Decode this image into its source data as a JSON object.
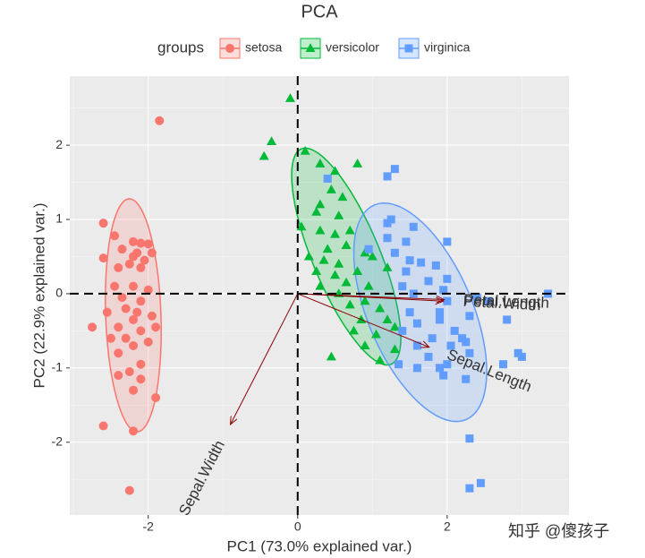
{
  "chart_data": {
    "type": "scatter",
    "title": "PCA",
    "x_label": "PC1 (73.0% explained var.)",
    "y_label": "PC2 (22.9% explained var.)",
    "legend_title": "groups",
    "grid": true,
    "xlim": [
      -3.05,
      3.63
    ],
    "ylim": [
      -2.98,
      2.93
    ],
    "xticks": [
      -2,
      0,
      2
    ],
    "yticks": [
      -2,
      -1,
      0,
      1,
      2
    ],
    "series": [
      {
        "name": "setosa",
        "color": "#F8766D",
        "shape": "circle",
        "x": [
          -1.85,
          -2.6,
          -2.45,
          -2.2,
          -2.1,
          -2.0,
          -2.35,
          -2.15,
          -1.95,
          -2.2,
          -2.05,
          -2.6,
          -2.4,
          -2.25,
          -2.1,
          -2.45,
          -2.2,
          -2.0,
          -2.35,
          -2.1,
          -2.3,
          -2.15,
          -1.95,
          -2.55,
          -2.2,
          -1.9,
          -2.75,
          -2.4,
          -2.1,
          -2.3,
          -2.0,
          -2.5,
          -2.2,
          -2.4,
          -2.1,
          -2.25,
          -2.4,
          -2.1,
          -2.2,
          -1.9,
          -2.6,
          -2.2,
          -2.25
        ],
        "y": [
          2.33,
          0.95,
          0.78,
          0.7,
          0.68,
          0.67,
          0.6,
          0.55,
          0.55,
          0.5,
          0.45,
          0.48,
          0.35,
          0.4,
          0.35,
          0.1,
          0.1,
          0.05,
          -0.05,
          -0.1,
          -0.2,
          -0.25,
          -0.3,
          -0.25,
          -0.35,
          -0.45,
          -0.45,
          -0.45,
          -0.5,
          -0.6,
          -0.65,
          -0.6,
          -0.7,
          -0.8,
          -0.95,
          -1.05,
          -1.1,
          -1.15,
          -1.3,
          -1.4,
          -1.78,
          -1.85,
          -2.65
        ],
        "ellipse": {
          "cx": -2.2,
          "cy": -0.29,
          "a": 1.57,
          "b": 0.37,
          "angle": 92
        }
      },
      {
        "name": "versicolor",
        "color": "#00BA38",
        "shape": "triangle",
        "x": [
          -0.1,
          -0.35,
          -0.45,
          0.1,
          0.3,
          0.5,
          0.45,
          0.8,
          0.6,
          0.3,
          0.25,
          0.55,
          0.05,
          0.3,
          0.5,
          0.4,
          0.7,
          0.65,
          0.9,
          1.0,
          0.15,
          0.35,
          0.55,
          0.25,
          0.5,
          0.8,
          1.2,
          0.65,
          0.95,
          0.3,
          0.55,
          0.9,
          0.7,
          1.1,
          0.85,
          1.2,
          0.75,
          1.05,
          1.3,
          0.9,
          0.45,
          1.1,
          1.3
        ],
        "y": [
          2.63,
          2.05,
          1.85,
          1.92,
          1.75,
          1.65,
          1.4,
          1.75,
          1.3,
          1.2,
          1.1,
          1.05,
          0.9,
          0.85,
          0.8,
          0.6,
          0.85,
          0.65,
          0.55,
          0.5,
          0.5,
          0.45,
          0.4,
          0.3,
          0.25,
          0.3,
          0.35,
          0.15,
          0.1,
          0.1,
          0.0,
          -0.1,
          -0.15,
          -0.2,
          -0.35,
          -0.35,
          -0.5,
          -0.55,
          -0.45,
          -0.7,
          -0.85,
          -0.9,
          -0.75
        ],
        "ellipse": {
          "cx": 0.65,
          "cy": 0.5,
          "a": 1.57,
          "b": 0.45,
          "angle": -67.5
        }
      },
      {
        "name": "virginica",
        "color": "#619CFF",
        "shape": "square",
        "x": [
          1.3,
          1.2,
          0.4,
          1.25,
          1.2,
          1.55,
          1.2,
          1.45,
          2.0,
          0.95,
          1.3,
          1.5,
          1.65,
          1.85,
          1.45,
          2.0,
          1.75,
          1.4,
          1.95,
          1.55,
          2.0,
          2.4,
          2.55,
          3.35,
          1.5,
          1.9,
          1.6,
          1.9,
          2.3,
          2.1,
          1.4,
          1.8,
          2.2,
          2.05,
          2.25,
          1.6,
          2.3,
          1.75,
          1.35,
          1.6,
          1.9,
          2.0,
          2.75,
          2.95,
          3.0,
          2.25,
          1.95,
          2.3,
          2.45,
          2.3,
          2.8
        ],
        "y": [
          1.68,
          1.58,
          1.55,
          1.0,
          0.95,
          0.9,
          0.75,
          0.7,
          0.7,
          0.6,
          0.55,
          0.45,
          0.42,
          0.38,
          0.3,
          0.2,
          0.17,
          0.1,
          0.05,
          0.0,
          -0.1,
          -0.05,
          -0.1,
          0.0,
          -0.25,
          -0.25,
          -0.4,
          -0.35,
          -0.3,
          -0.5,
          -0.5,
          -0.6,
          -0.6,
          -0.7,
          -0.65,
          -0.7,
          -0.8,
          -0.85,
          -0.95,
          -1.0,
          -1.0,
          -0.95,
          -0.95,
          -0.8,
          -0.85,
          -1.15,
          -1.1,
          -1.95,
          -2.55,
          -2.62,
          -0.35
        ],
        "ellipse": {
          "cx": 1.64,
          "cy": -0.25,
          "a": 1.57,
          "b": 0.7,
          "angle": -67
        }
      }
    ],
    "loadings": [
      {
        "name": "Sepal.Length",
        "x": 1.76,
        "y": -0.72
      },
      {
        "name": "Sepal.Width",
        "x": -0.9,
        "y": -1.76
      },
      {
        "name": "Petal.Length",
        "x": 1.96,
        "y": -0.08
      },
      {
        "name": "Petal.Width",
        "x": 1.95,
        "y": -0.1
      }
    ]
  },
  "watermark": "知乎 @傻孩子"
}
